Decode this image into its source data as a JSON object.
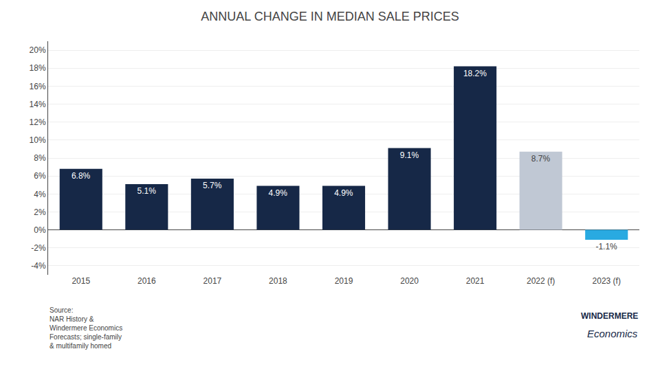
{
  "chart_data": {
    "type": "bar",
    "title": "ANNUAL CHANGE IN MEDIAN SALE PRICES",
    "categories": [
      "2015",
      "2016",
      "2017",
      "2018",
      "2019",
      "2020",
      "2021",
      "2022 (f)",
      "2023 (f)"
    ],
    "values": [
      6.8,
      5.1,
      5.7,
      4.9,
      4.9,
      9.1,
      18.2,
      8.7,
      -1.1
    ],
    "value_labels": [
      "6.8%",
      "5.1%",
      "5.7%",
      "4.9%",
      "4.9%",
      "9.1%",
      "18.2%",
      "8.7%",
      "-1.1%"
    ],
    "data_labels": true,
    "colors": [
      "#162847",
      "#162847",
      "#162847",
      "#162847",
      "#162847",
      "#162847",
      "#162847",
      "#c0c8d4",
      "#29aae1"
    ],
    "ylim": [
      -5,
      21
    ],
    "yticks": [
      {
        "value": -4,
        "label": "-4%"
      },
      {
        "value": -2,
        "label": "-2%"
      },
      {
        "value": 0,
        "label": "0%"
      },
      {
        "value": 2,
        "label": "2%"
      },
      {
        "value": 4,
        "label": "4%"
      },
      {
        "value": 6,
        "label": "6%"
      },
      {
        "value": 8,
        "label": "8%"
      },
      {
        "value": 10,
        "label": "10%"
      },
      {
        "value": 12,
        "label": "12%"
      },
      {
        "value": 14,
        "label": "14%"
      },
      {
        "value": 16,
        "label": "16%"
      },
      {
        "value": 18,
        "label": "18%"
      },
      {
        "value": 20,
        "label": "20%"
      }
    ],
    "grid": true,
    "annotations": [
      "Source:\nNAR History &\nWindermere Economics\nForecasts; single-family\n& multifamily homed",
      "WINDERMERE",
      "Economics"
    ]
  }
}
